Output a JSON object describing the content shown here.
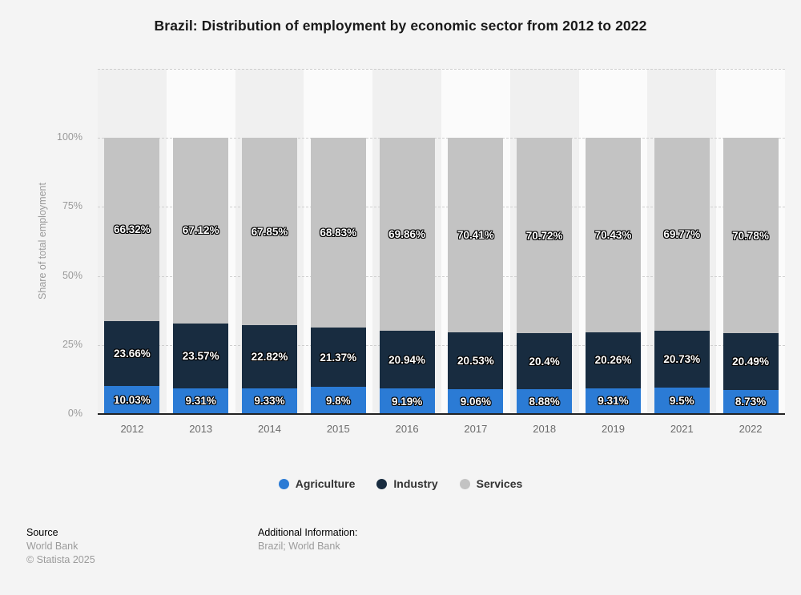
{
  "title": "Brazil: Distribution of employment by economic sector from 2012 to 2022",
  "chart_data": {
    "type": "bar",
    "stacked": true,
    "title": "Brazil: Distribution of employment by economic sector from 2012 to 2022",
    "categories": [
      "2012",
      "2013",
      "2014",
      "2015",
      "2016",
      "2017",
      "2018",
      "2019",
      "2021",
      "2022"
    ],
    "series": [
      {
        "name": "Agriculture",
        "color": "#2b7bd5",
        "values": [
          10.03,
          9.31,
          9.33,
          9.8,
          9.19,
          9.06,
          8.88,
          9.31,
          9.5,
          8.73
        ],
        "labels": [
          "10.03%",
          "9.31%",
          "9.33%",
          "9.8%",
          "9.19%",
          "9.06%",
          "8.88%",
          "9.31%",
          "9.5%",
          "8.73%"
        ]
      },
      {
        "name": "Industry",
        "color": "#182c40",
        "values": [
          23.66,
          23.57,
          22.82,
          21.37,
          20.94,
          20.53,
          20.4,
          20.26,
          20.73,
          20.49
        ],
        "labels": [
          "23.66%",
          "23.57%",
          "22.82%",
          "21.37%",
          "20.94%",
          "20.53%",
          "20.4%",
          "20.26%",
          "20.73%",
          "20.49%"
        ]
      },
      {
        "name": "Services",
        "color": "#c3c3c3",
        "values": [
          66.32,
          67.12,
          67.85,
          68.83,
          69.86,
          70.41,
          70.72,
          70.43,
          69.77,
          70.78
        ],
        "labels": [
          "66.32%",
          "67.12%",
          "67.85%",
          "68.83%",
          "69.86%",
          "70.41%",
          "70.72%",
          "70.43%",
          "69.77%",
          "70.78%"
        ]
      }
    ],
    "ylabel": "Share of total employment",
    "xlabel": "",
    "ytick_labels": [
      "0%",
      "25%",
      "50%",
      "75%",
      "100%"
    ],
    "ylim": [
      0,
      125
    ],
    "grid": "dashed horizontal lines at 25% steps plus top boundary",
    "legend_position": "bottom"
  },
  "legend": {
    "items": [
      "Agriculture",
      "Industry",
      "Services"
    ]
  },
  "footer": {
    "source_head": "Source",
    "source_line1": "World Bank",
    "source_line2": "© Statista 2025",
    "additional_head": "Additional Information:",
    "additional_line1": "Brazil; World Bank"
  }
}
